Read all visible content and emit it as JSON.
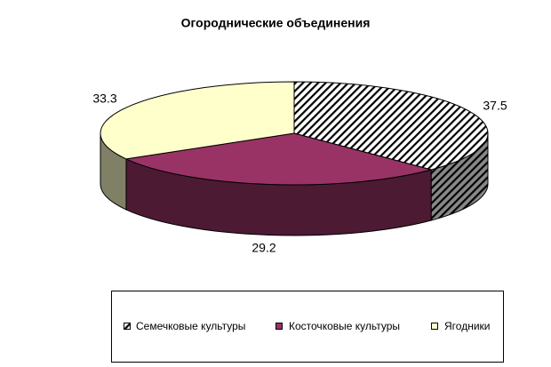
{
  "chart_data": {
    "type": "pie3d",
    "title": "Огороднические объединения",
    "categories": [
      "Семечковые культуры",
      "Косточковые культуры",
      "Ягодники"
    ],
    "values": [
      37.5,
      29.2,
      33.3
    ],
    "colors": [
      "#ffffff",
      "#993366",
      "#ffffcc"
    ],
    "patterns": [
      "diagonal",
      "solid",
      "solid"
    ],
    "legend": "bottom"
  }
}
